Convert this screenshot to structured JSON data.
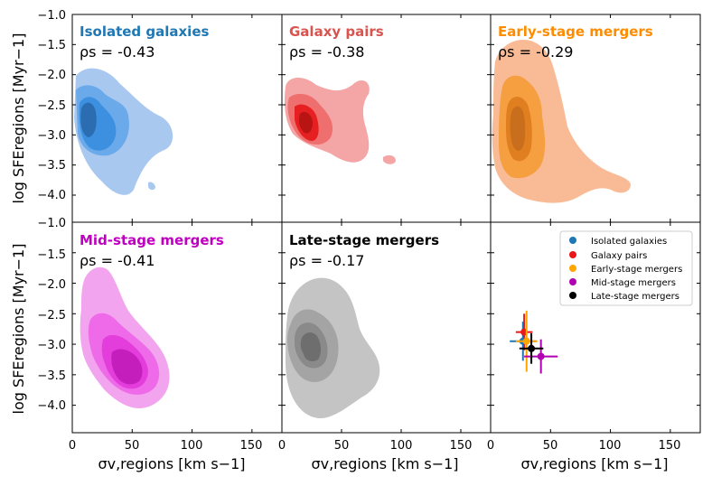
{
  "chart_data": {
    "type": "multi-panel density contour + errorbar summary",
    "shared": {
      "xlabel": "σv,regions [km s−1]",
      "ylabel": "log SFEregions [Myr−1]",
      "xlim": [
        0,
        175
      ],
      "ylim": [
        -4.45,
        -1.0
      ],
      "xticks": [
        "0",
        "50",
        "100",
        "150"
      ],
      "xtick_values": [
        0,
        50,
        100,
        150
      ],
      "yticks": [
        "−1.0",
        "−1.5",
        "−2.0",
        "−2.5",
        "−3.0",
        "−3.5",
        "−4.0"
      ],
      "ytick_values": [
        -1.0,
        -1.5,
        -2.0,
        -2.5,
        -3.0,
        -3.5,
        -4.0
      ]
    },
    "panels": [
      {
        "title": "Isolated galaxies",
        "rho_label": "ρs = -0.43",
        "rho": -0.43,
        "color": "#1f77b4",
        "fills": [
          "#a8c8f0",
          "#6aa9ea",
          "#3d8fe0",
          "#2b6db0"
        ],
        "center": [
          15,
          -2.75
        ]
      },
      {
        "title": "Galaxy pairs",
        "rho_label": "ρs = -0.38",
        "rho": -0.38,
        "color": "#d9534f",
        "fills": [
          "#f4a6a6",
          "#ef6e6e",
          "#e62020",
          "#b81414"
        ],
        "center": [
          24,
          -2.8
        ]
      },
      {
        "title": "Early-stage mergers",
        "rho_label": "ρs = -0.29",
        "rho": -0.29,
        "color": "#ff8c00",
        "fills": [
          "#f8bb96",
          "#f59f40",
          "#e07f20",
          "#c86e1c"
        ],
        "center": [
          22,
          -2.9
        ]
      },
      {
        "title": "Mid-stage mergers",
        "rho_label": "ρs = -0.41",
        "rho": -0.41,
        "color": "#c000c0",
        "fills": [
          "#f2a4ef",
          "#ee6ae8",
          "#e33ddb",
          "#c41fbd"
        ],
        "center": [
          45,
          -3.4
        ]
      },
      {
        "title": "Late-stage mergers",
        "rho_label": "ρs = -0.17",
        "rho": -0.17,
        "color": "#000000",
        "fills": [
          "#c4c4c4",
          "#a4a4a4",
          "#8a8a8a",
          "#6e6e6e"
        ],
        "center": [
          25,
          -3.05
        ]
      }
    ],
    "summary": {
      "legend": [
        "Isolated galaxies",
        "Galaxy pairs",
        "Early-stage mergers",
        "Mid-stage mergers",
        "Late-stage mergers"
      ],
      "colors": [
        "#1f77b4",
        "#e8191b",
        "#ffa500",
        "#b100b1",
        "#000000"
      ],
      "points": [
        {
          "x": 27,
          "y": -2.95,
          "xerr": 11,
          "yerr": 0.32
        },
        {
          "x": 28,
          "y": -2.8,
          "xerr": 7,
          "yerr": 0.3
        },
        {
          "x": 30,
          "y": -2.95,
          "xerr": 9,
          "yerr": 0.5
        },
        {
          "x": 42,
          "y": -3.2,
          "xerr": 14,
          "yerr": 0.28
        },
        {
          "x": 34,
          "y": -3.07,
          "xerr": 10,
          "yerr": 0.25
        }
      ]
    }
  }
}
